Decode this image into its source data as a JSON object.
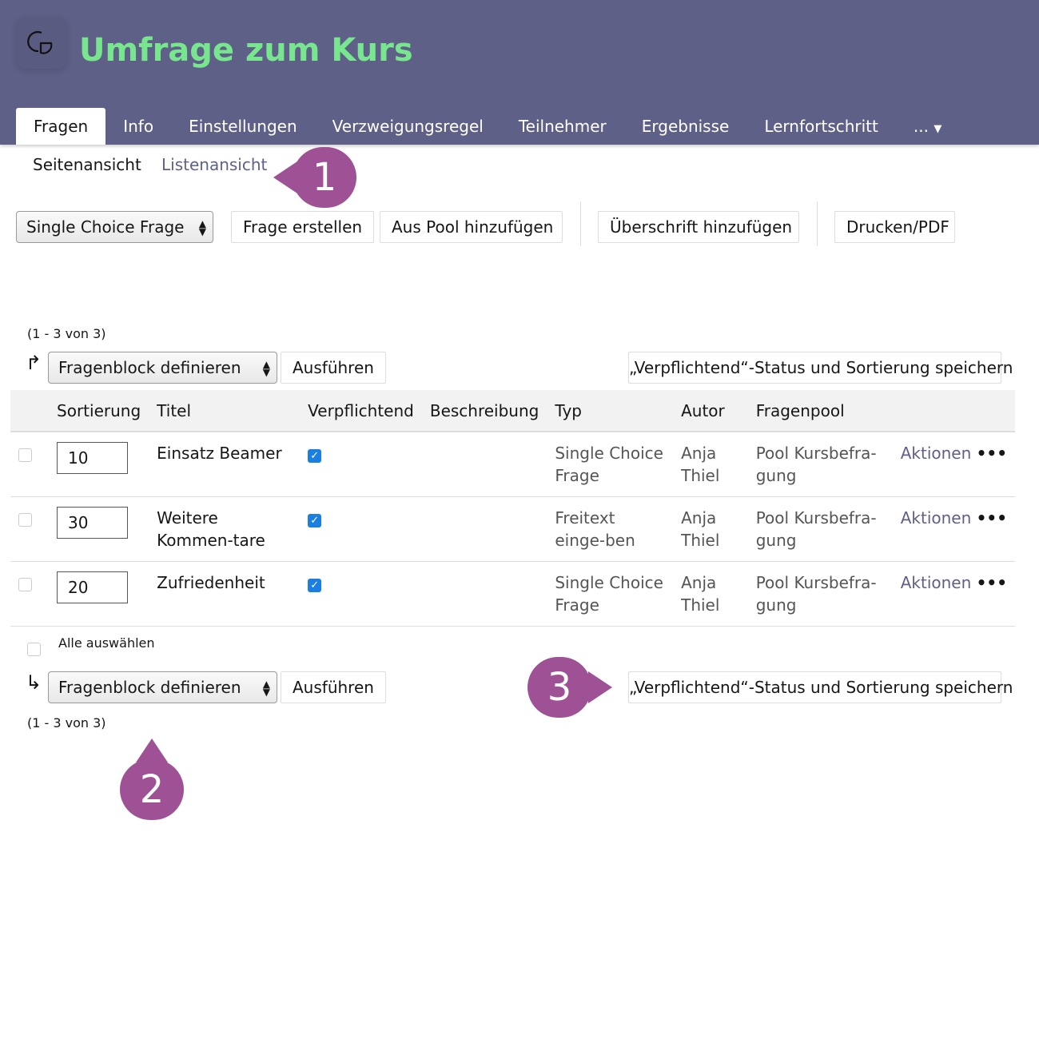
{
  "header": {
    "title": "Umfrage zum Kurs",
    "logo_icon": "survey-icon",
    "accent": "#78e68e",
    "bg": "#5f6087"
  },
  "tabs": [
    "Fragen",
    "Info",
    "Einstellungen",
    "Verzweigungsregel",
    "Teilnehmer",
    "Ergebnisse",
    "Lernfortschritt",
    "..."
  ],
  "subtabs": {
    "page": "Seitenansicht",
    "list": "Listenansicht"
  },
  "toolbar": {
    "type_select": "Single Choice Frage",
    "create": "Frage erstellen",
    "pool": "Aus Pool hinzufügen",
    "heading": "Überschrift hinzufügen",
    "print": "Drucken/PDF"
  },
  "pager": "(1 - 3 von 3)",
  "bulk": {
    "select": "Fragenblock definieren",
    "execute": "Ausführen",
    "save": "„Verpflichtend“-Status und Sortierung speichern",
    "select_all": "Alle auswählen"
  },
  "columns": [
    "Sortierung",
    "Titel",
    "Verpflichtend",
    "Beschreibung",
    "Typ",
    "Autor",
    "Fragenpool"
  ],
  "rows": [
    {
      "sort": "10",
      "title": "Einsatz Beamer",
      "required": true,
      "description": "",
      "type": "Single Choice Frage",
      "author": "Anja Thiel",
      "pool": "Pool Kursbefra-gung",
      "actions": "Aktionen"
    },
    {
      "sort": "30",
      "title": "Weitere Kommen-tare",
      "required": true,
      "description": "",
      "type": "Freitext einge-ben",
      "author": "Anja Thiel",
      "pool": "Pool Kursbefra-gung",
      "actions": "Aktionen"
    },
    {
      "sort": "20",
      "title": "Zufriedenheit",
      "required": true,
      "description": "",
      "type": "Single Choice Frage",
      "author": "Anja Thiel",
      "pool": "Pool Kursbefra-gung",
      "actions": "Aktionen"
    }
  ],
  "markers": [
    "1",
    "2",
    "3"
  ],
  "marker_color": "#9e5195"
}
